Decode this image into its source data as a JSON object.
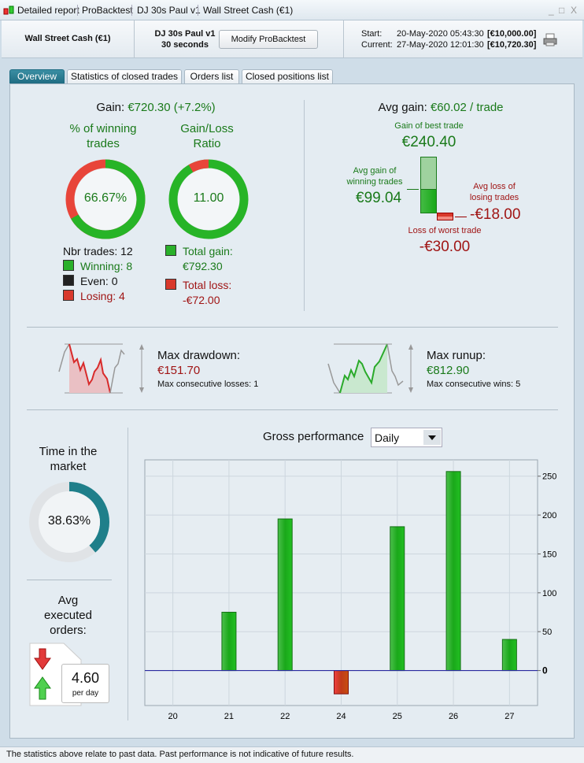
{
  "window": {
    "tabs": [
      "Detailed report",
      "ProBacktest",
      "DJ 30s Paul v1",
      "Wall Street Cash (€1)"
    ],
    "minimize": "_",
    "maximize": "□",
    "close": "X"
  },
  "header": {
    "instrument": "Wall Street Cash (€1)",
    "strategy": "DJ 30s Paul v1",
    "timeframe": "30 seconds",
    "modify_button": "Modify ProBacktest",
    "start_label": "Start:",
    "start_date": "20-May-2020 05:43:30",
    "start_value": "[€10,000.00]",
    "current_label": "Current:",
    "current_date": "27-May-2020 12:01:30",
    "current_value": "[€10,720.30]",
    "print_icon": "printer-icon"
  },
  "tabs": [
    {
      "label": "Overview",
      "active": true
    },
    {
      "label": "Statistics of closed trades"
    },
    {
      "label": "Orders list"
    },
    {
      "label": "Closed positions list"
    }
  ],
  "gain": {
    "label": "Gain:",
    "value": "€720.30 (+7.2%)"
  },
  "winning": {
    "title": "% of winning trades",
    "percent_text": "66.67%",
    "percent": 66.67
  },
  "ratio": {
    "title": "Gain/Loss Ratio",
    "value": "11.00",
    "loss_fraction": 0.0833
  },
  "counts": {
    "nbr_trades": "Nbr trades: 12",
    "winning": "Winning: 8",
    "even": "Even: 0",
    "losing": "Losing: 4"
  },
  "totals": {
    "gain_label": "Total gain:",
    "gain_value": "€792.30",
    "loss_label": "Total loss:",
    "loss_value": "-€72.00"
  },
  "avg": {
    "label": "Avg gain:",
    "value": "€60.02 / trade",
    "best_label": "Gain of best trade",
    "best_value": "€240.40",
    "avg_win_label_1": "Avg gain of",
    "avg_win_label_2": "winning trades",
    "avg_win_value": "€99.04",
    "avg_loss_label_1": "Avg loss of",
    "avg_loss_label_2": "losing trades",
    "avg_loss_value": "-€18.00",
    "worst_label": "Loss of worst trade",
    "worst_value": "-€30.00"
  },
  "drawdown": {
    "label": "Max drawdown:",
    "value": "€151.70",
    "sub": "Max consecutive losses: 1"
  },
  "runup": {
    "label": "Max runup:",
    "value": "€812.90",
    "sub": "Max consecutive wins: 5"
  },
  "time_market": {
    "title_1": "Time in the",
    "title_2": "market",
    "value_text": "38.63%",
    "percent": 38.63,
    "color": "#1f7f8a"
  },
  "orders": {
    "title_1": "Avg",
    "title_2": "executed",
    "title_3": "orders:",
    "value": "4.60",
    "unit": "per day"
  },
  "perf": {
    "title": "Gross performance",
    "period": "Daily"
  },
  "chart_data": {
    "type": "bar",
    "categories": [
      "20",
      "21",
      "22",
      "24",
      "25",
      "26",
      "27"
    ],
    "values": [
      0,
      75,
      195,
      -30,
      185,
      256,
      40
    ],
    "ylim": [
      -45,
      271
    ],
    "yticks": [
      0,
      50,
      100,
      150,
      200,
      250
    ],
    "grid": true,
    "positive_color": "#22b422",
    "negative_color": "#d83a2a",
    "zero_line_color": "#2a2aa0"
  },
  "footer": "The statistics above relate to past data. Past performance is not indicative of future results."
}
